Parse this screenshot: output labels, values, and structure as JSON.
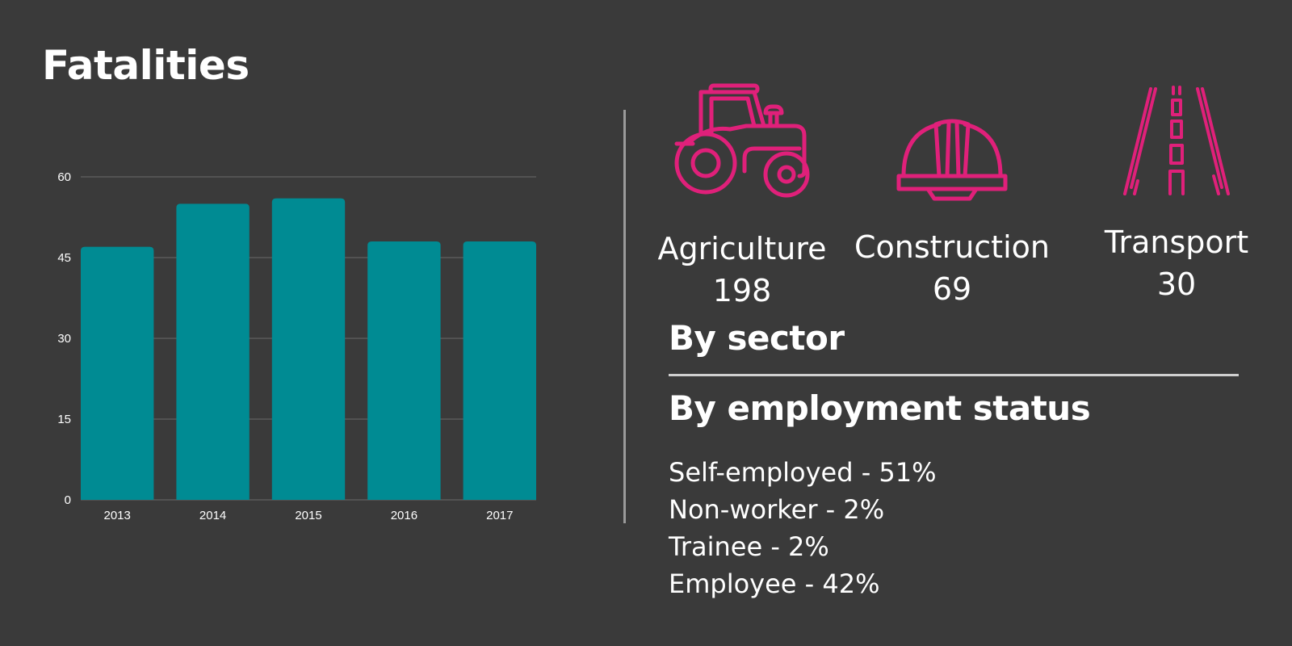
{
  "title": "Fatalities",
  "colors": {
    "background": "#3a3a3a",
    "bar": "#008b93",
    "accent": "#e0207a",
    "text": "#ffffff",
    "gridline": "#5a5a5a"
  },
  "chart_data": {
    "type": "bar",
    "categories": [
      "2013",
      "2014",
      "2015",
      "2016",
      "2017"
    ],
    "values": [
      47,
      55,
      56,
      48,
      48
    ],
    "ylim": [
      0,
      60
    ],
    "yticks": [
      0,
      15,
      30,
      45,
      60
    ],
    "xlabel": "",
    "ylabel": "",
    "grid": true
  },
  "sectors": [
    {
      "name": "Agriculture",
      "value": "198",
      "icon": "tractor-icon"
    },
    {
      "name": "Construction",
      "value": "69",
      "icon": "hard-hat-icon"
    },
    {
      "name": "Transport",
      "value": "30",
      "icon": "road-icon"
    }
  ],
  "by_sector_heading": "By sector",
  "by_employment_heading": "By employment status",
  "employment_status": [
    {
      "label": "Self-employed - 51%"
    },
    {
      "label": "Non-worker - 2%"
    },
    {
      "label": "Trainee - 2%"
    },
    {
      "label": "Employee - 42%"
    }
  ]
}
